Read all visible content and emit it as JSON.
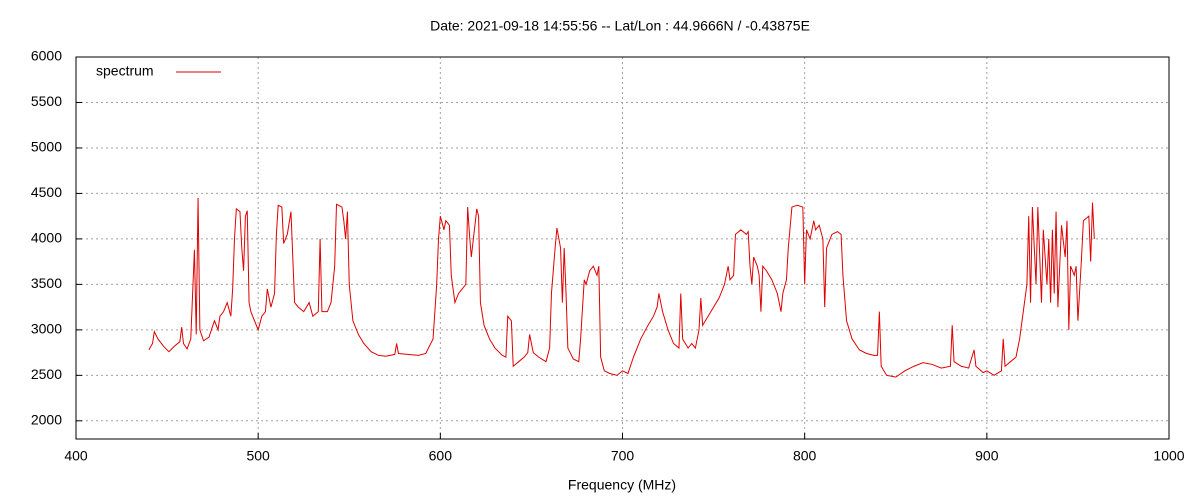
{
  "chart_data": {
    "type": "line",
    "title": "Date: 2021-09-18 14:55:56  --  Lat/Lon : 44.9666N / -0.43875E",
    "xlabel": "Frequency (MHz)",
    "xlim": [
      400,
      1000
    ],
    "xticks": [
      400,
      500,
      600,
      700,
      800,
      900,
      1000
    ],
    "ylim": [
      1800,
      6000
    ],
    "yticks": [
      2000,
      2500,
      3000,
      3500,
      4000,
      4500,
      5000,
      5500,
      6000
    ],
    "grid": true,
    "legend": "upper left",
    "x": [
      440,
      442,
      443,
      445,
      448,
      451,
      454,
      457,
      458,
      459,
      461,
      463,
      465,
      466,
      467,
      468,
      470,
      473,
      476,
      478,
      479,
      481,
      483,
      485,
      486,
      487,
      488,
      490,
      491,
      492,
      493,
      494,
      495,
      496,
      498,
      500,
      502,
      504,
      505,
      507,
      509,
      510,
      511,
      513,
      514,
      516,
      518,
      519,
      520,
      522,
      525,
      528,
      530,
      533,
      534,
      535,
      538,
      540,
      542,
      543,
      546,
      547,
      548,
      549,
      550,
      552,
      555,
      558,
      562,
      566,
      570,
      575,
      576,
      577,
      582,
      588,
      592,
      596,
      598,
      599,
      600,
      602,
      603,
      605,
      606,
      608,
      610,
      612,
      614,
      615,
      616,
      617,
      619,
      620,
      621,
      622,
      624,
      627,
      630,
      634,
      636,
      637,
      639,
      640,
      643,
      646,
      648,
      649,
      651,
      654,
      658,
      660,
      661,
      663,
      664,
      666,
      667,
      668,
      669,
      670,
      673,
      676,
      677,
      679,
      680,
      682,
      684,
      686,
      687,
      688,
      690,
      693,
      697,
      700,
      703,
      706,
      710,
      714,
      717,
      719,
      720,
      722,
      725,
      728,
      731,
      732,
      733,
      736,
      738,
      740,
      742,
      743,
      744,
      747,
      750,
      753,
      756,
      758,
      759,
      761,
      762,
      765,
      768,
      769,
      770,
      771,
      772,
      774,
      775,
      776,
      777,
      779,
      782,
      785,
      787,
      788,
      790,
      791,
      793,
      796,
      799,
      800,
      801,
      803,
      805,
      806,
      808,
      810,
      811,
      812,
      815,
      818,
      820,
      821,
      823,
      826,
      830,
      834,
      838,
      840,
      841,
      842,
      845,
      850,
      855,
      860,
      865,
      870,
      875,
      880,
      881,
      882,
      886,
      890,
      893,
      894,
      898,
      900,
      904,
      908,
      909,
      910,
      913,
      916,
      918,
      920,
      922,
      923,
      924,
      925,
      927,
      928,
      930,
      931,
      933,
      934,
      935,
      936,
      937,
      938,
      939,
      941,
      943,
      944,
      945,
      946,
      948,
      949,
      950,
      952,
      953,
      956,
      957,
      958,
      959
    ],
    "series": [
      {
        "name": "spectrum",
        "color": "#e00000",
        "values": [
          2780,
          2850,
          2980,
          2900,
          2820,
          2760,
          2820,
          2870,
          3030,
          2850,
          2790,
          2900,
          3880,
          2950,
          4450,
          3000,
          2880,
          2920,
          3100,
          3000,
          3150,
          3200,
          3300,
          3150,
          3450,
          4000,
          4330,
          4300,
          3900,
          3650,
          4250,
          4310,
          3300,
          3200,
          3100,
          3000,
          3150,
          3200,
          3450,
          3250,
          3400,
          4050,
          4370,
          4350,
          3950,
          4050,
          4300,
          3800,
          3300,
          3250,
          3200,
          3300,
          3150,
          3200,
          4000,
          3200,
          3200,
          3300,
          3700,
          4380,
          4350,
          4200,
          4000,
          4300,
          3500,
          3100,
          2950,
          2850,
          2760,
          2720,
          2710,
          2730,
          2850,
          2740,
          2730,
          2720,
          2740,
          2900,
          3500,
          4000,
          4250,
          4100,
          4200,
          4150,
          3600,
          3300,
          3400,
          3450,
          3500,
          4350,
          4050,
          3800,
          4150,
          4330,
          4250,
          3300,
          3050,
          2900,
          2800,
          2720,
          2700,
          3150,
          3100,
          2600,
          2650,
          2700,
          2750,
          2950,
          2750,
          2700,
          2650,
          2800,
          3400,
          3900,
          4120,
          3900,
          3300,
          3900,
          3400,
          2800,
          2680,
          2650,
          2900,
          3550,
          3500,
          3650,
          3700,
          3600,
          3700,
          2700,
          2550,
          2520,
          2500,
          2550,
          2520,
          2700,
          2900,
          3050,
          3150,
          3250,
          3400,
          3200,
          3000,
          2850,
          2800,
          3400,
          2900,
          2800,
          2850,
          2800,
          3000,
          3350,
          3050,
          3150,
          3250,
          3350,
          3500,
          3700,
          3550,
          3600,
          4050,
          4100,
          4050,
          4080,
          3700,
          3500,
          3800,
          3700,
          3600,
          3200,
          3700,
          3650,
          3550,
          3400,
          3200,
          3400,
          3550,
          3900,
          4350,
          4370,
          4350,
          3500,
          4100,
          4000,
          4200,
          4100,
          4150,
          4000,
          3250,
          3900,
          4050,
          4080,
          4050,
          3600,
          3100,
          2900,
          2780,
          2740,
          2720,
          2720,
          3200,
          2600,
          2500,
          2480,
          2550,
          2600,
          2640,
          2620,
          2580,
          2600,
          3050,
          2650,
          2600,
          2580,
          2780,
          2600,
          2530,
          2550,
          2500,
          2550,
          2900,
          2600,
          2650,
          2700,
          2900,
          3200,
          3500,
          4250,
          3300,
          4350,
          3500,
          4350,
          3300,
          4100,
          3500,
          4000,
          3300,
          4100,
          3400,
          4300,
          3250,
          4150,
          3800,
          4200,
          3000,
          3700,
          3600,
          3700,
          3100,
          3800,
          4200,
          4250,
          3750,
          4400,
          4000
        ]
      }
    ]
  }
}
